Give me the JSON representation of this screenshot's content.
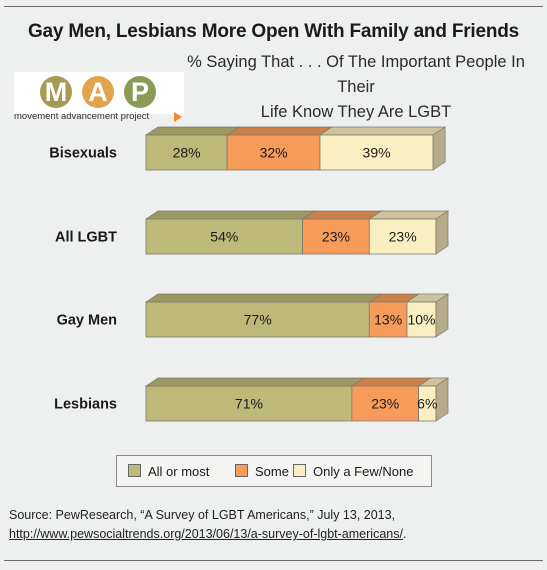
{
  "header": {
    "title": "Gay Men, Lesbians More Open With Family and Friends",
    "subtitle_line1": "% Saying That . . .  Of The Important People In Their",
    "subtitle_line2": "Life Know They Are LGBT"
  },
  "logo": {
    "letters": [
      "M",
      "A",
      "P"
    ],
    "tagline": "movement advancement project",
    "colors": [
      "#a79a55",
      "#e2a34a",
      "#8c9a58"
    ]
  },
  "chart_data": {
    "type": "bar",
    "orientation": "horizontal",
    "stacked": true,
    "categories": [
      "Bisexuals",
      "All LGBT",
      "Gay Men",
      "Lesbians"
    ],
    "series": [
      {
        "name": "All or most",
        "values": [
          28,
          54,
          77,
          71
        ],
        "labels": [
          "28%",
          "54%",
          "77%",
          "71%"
        ],
        "color": "#bdb978"
      },
      {
        "name": "Some",
        "values": [
          32,
          23,
          13,
          23
        ],
        "labels": [
          "32%",
          "23%",
          "13%",
          "23%"
        ],
        "color": "#f79b5a"
      },
      {
        "name": "Only a Few/None",
        "values": [
          39,
          23,
          10,
          6
        ],
        "labels": [
          "39%",
          "23%",
          "10%",
          "6%"
        ],
        "color": "#faefc0"
      }
    ],
    "title": "Gay Men, Lesbians More Open With Family and Friends",
    "subtitle": "% Saying That . . .  Of The Important People In Their Life Know They Are LGBT",
    "legend": "bottom",
    "grid": false
  },
  "source": {
    "prefix": "Source: PewResearch, “A Survey of LGBT Americans,” July 13, 2013, ",
    "link": "http://www.pewsocialtrends.org/2013/06/13/a-survey-of-lgbt-americans/",
    "suffix": "."
  }
}
